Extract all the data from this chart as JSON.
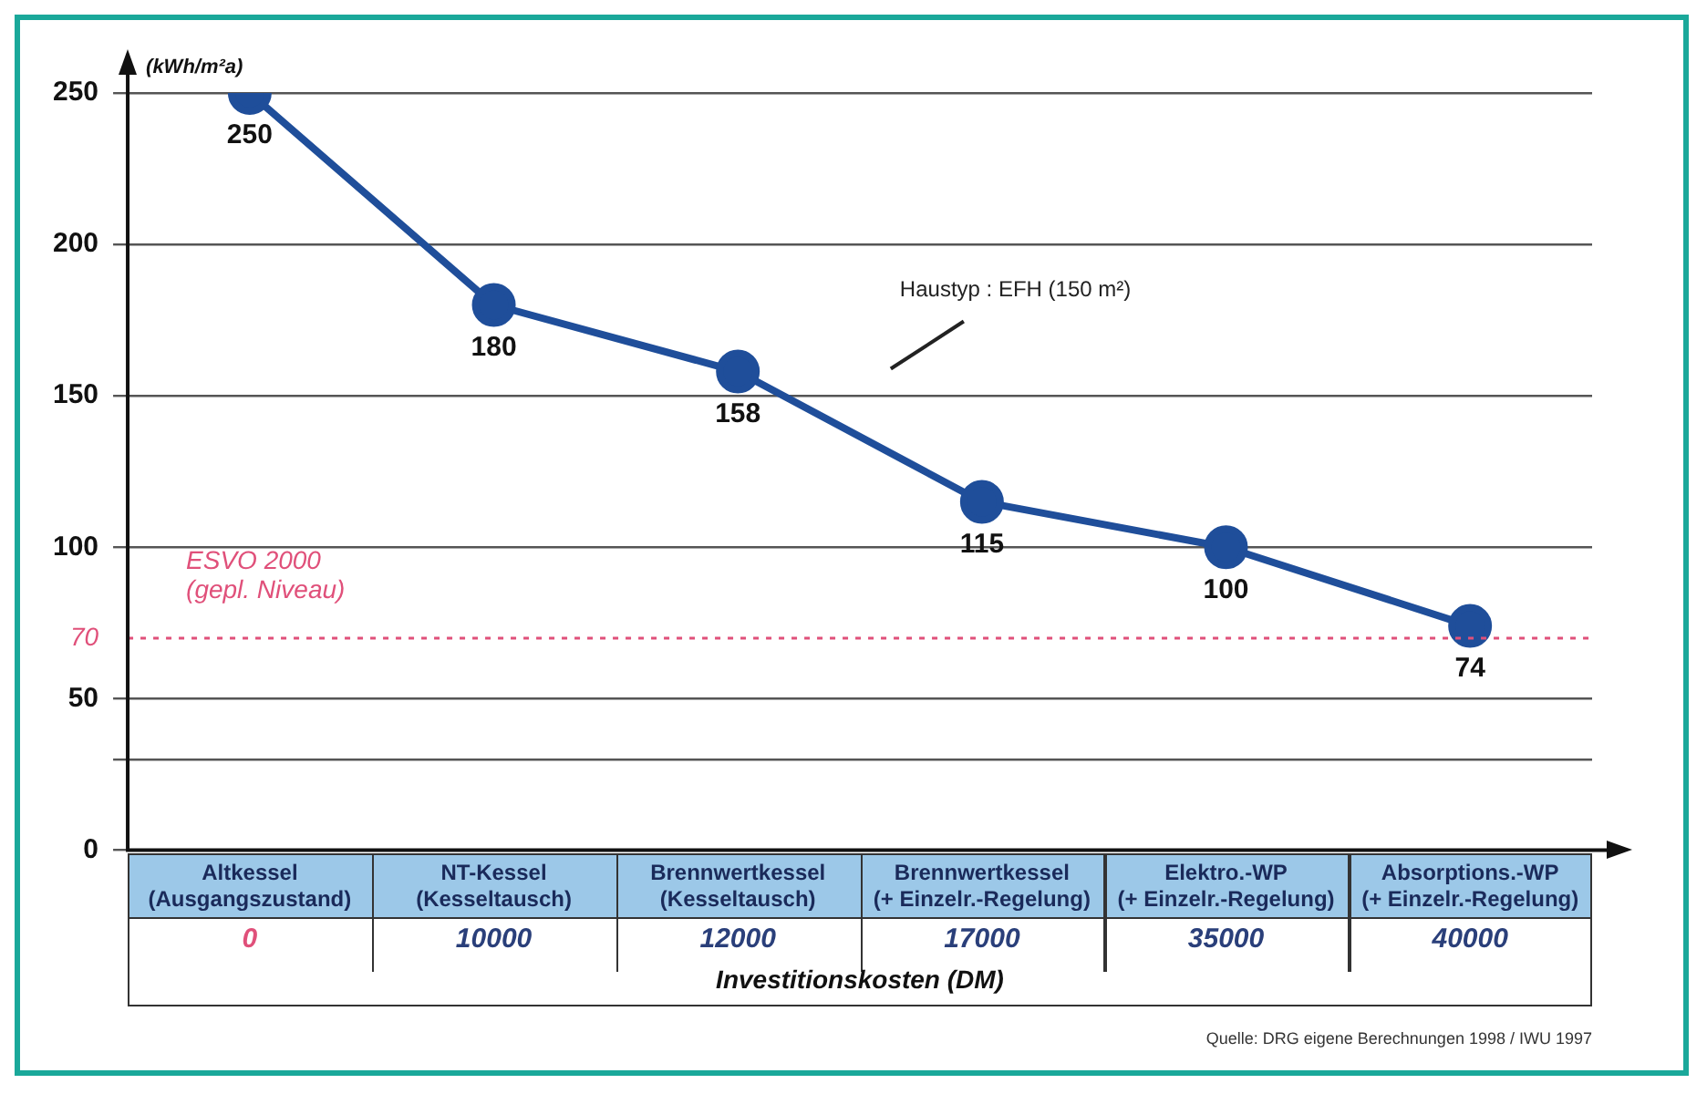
{
  "chart_data": {
    "type": "line",
    "ylabel": "(kWh/m²a)",
    "xlabel": "Investitionskosten (DM)",
    "categories": [
      "Altkessel (Ausgangszustand)",
      "NT-Kessel (Kesseltausch)",
      "Brennwertkessel (Kesseltausch)",
      "Brennwertkessel (+ Einzelr.-Regelung)",
      "Elektro.-WP (+ Einzelr.-Regelung)",
      "Absorptions.-WP (+ Einzelr.-Regelung)"
    ],
    "series": [
      {
        "color": "#1f4e9a",
        "values": [
          250,
          180,
          158,
          115,
          100,
          74
        ]
      }
    ],
    "data_labels": true,
    "marker": "circle",
    "line_style": "solid",
    "ylim": [
      0,
      250
    ],
    "yticks": [
      0,
      {
        "value": 30,
        "label": null
      },
      50,
      70,
      100,
      150,
      200,
      250
    ],
    "grid": "y",
    "legend": false,
    "ref_lines": [
      {
        "axis": "y",
        "value": 70,
        "label": "ESVO 2000 (gepl. Niveau)",
        "color": "#e0507a",
        "line_style": "dotted"
      }
    ],
    "annotations": [
      "Haustyp : EFH (150 m²)",
      "0",
      "10000",
      "12000",
      "17000",
      "35000",
      "40000",
      "Quelle: DRG eigene Berechnungen 1998 / IWU 1997"
    ]
  }
}
